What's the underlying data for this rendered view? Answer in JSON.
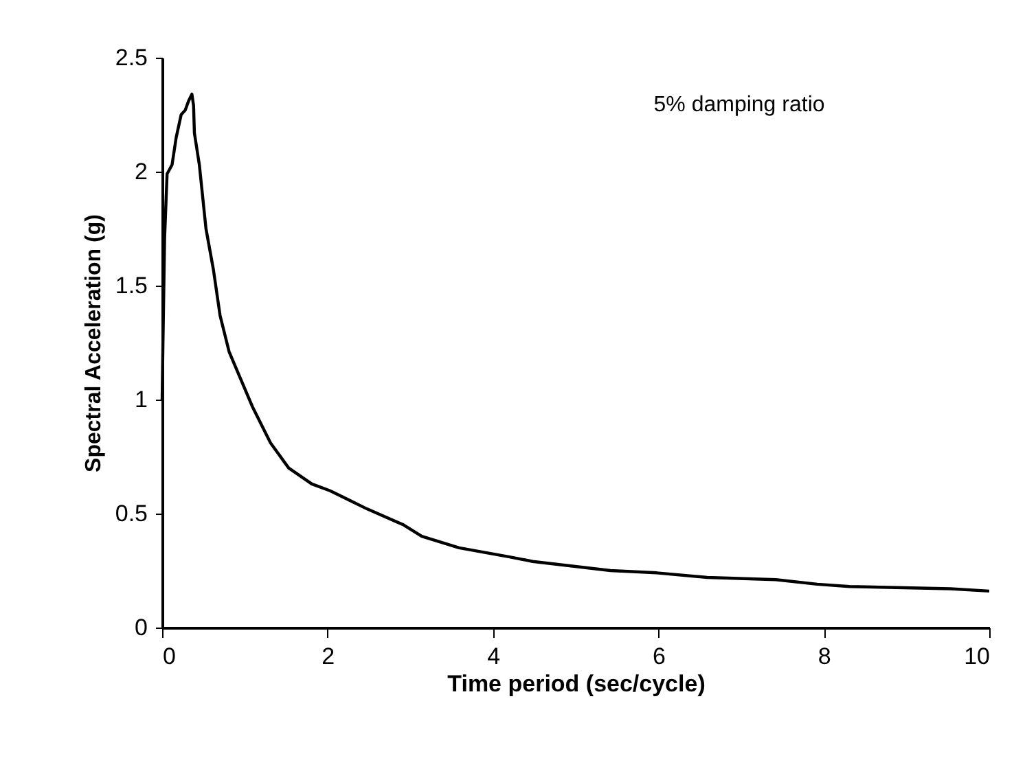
{
  "chart_data": {
    "type": "line",
    "xlabel": "Time period (sec/cycle)",
    "ylabel": "Spectral Acceleration (g)",
    "annotations": [
      "5% damping ratio"
    ],
    "x": [
      0,
      0.01,
      0.03,
      0.06,
      0.12,
      0.17,
      0.23,
      0.28,
      0.32,
      0.36,
      0.38,
      0.39,
      0.45,
      0.53,
      0.62,
      0.7,
      0.81,
      0.95,
      1.09,
      1.31,
      1.53,
      1.81,
      2.03,
      2.48,
      2.92,
      3.14,
      3.59,
      4.2,
      4.48,
      5.42,
      5.98,
      6.59,
      7.42,
      7.92,
      8.31,
      9.53,
      10
    ],
    "series": [
      {
        "color": "#000000",
        "values": [
          1.0,
          1.25,
          1.71,
          1.99,
          2.03,
          2.15,
          2.25,
          2.27,
          2.31,
          2.34,
          2.29,
          2.17,
          2.03,
          1.75,
          1.57,
          1.37,
          1.21,
          1.09,
          0.97,
          0.81,
          0.7,
          0.63,
          0.6,
          0.52,
          0.45,
          0.4,
          0.35,
          0.31,
          0.29,
          0.25,
          0.24,
          0.22,
          0.21,
          0.19,
          0.18,
          0.17,
          0.16
        ]
      }
    ],
    "xlim": [
      0,
      10
    ],
    "xticks": [
      0,
      2,
      4,
      6,
      8,
      10
    ],
    "ylim": [
      0,
      2.5
    ],
    "yticks": [
      0,
      0.5,
      1,
      1.5,
      2,
      2.5
    ],
    "grid": false,
    "marker": "none",
    "line_style": "solid"
  }
}
